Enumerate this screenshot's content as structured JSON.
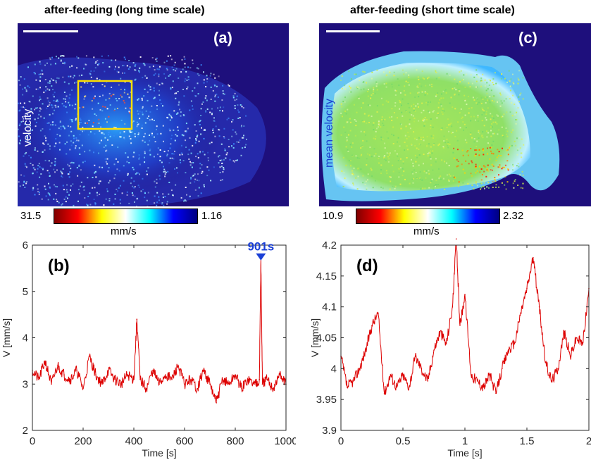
{
  "panels": {
    "a": {
      "title": "after-feeding (long time scale)",
      "letter": "(a)",
      "side_label": "velocity",
      "colorbar": {
        "min_label": "31.5",
        "max_label": "1.16",
        "unit": "mm/s"
      },
      "timestamp": "901s",
      "colormap": [
        "#800000",
        "#ff0000",
        "#ffff00",
        "#ffffff",
        "#00ffff",
        "#0000ff",
        "#000080"
      ]
    },
    "c": {
      "title": "after-feeding (short time scale)",
      "letter": "(c)",
      "side_label": "mean velocity",
      "colorbar": {
        "min_label": "10.9",
        "max_label": "2.32",
        "unit": "mm/s"
      },
      "colormap": [
        "#800000",
        "#ff0000",
        "#ffff00",
        "#ffffff",
        "#00ffff",
        "#0000ff",
        "#000080"
      ]
    }
  },
  "chart_data": [
    {
      "type": "line",
      "panel_label": "(b)",
      "xlabel": "Time [s]",
      "ylabel": "V [mm/s]",
      "xlim": [
        0,
        1000
      ],
      "ylim": [
        2,
        6
      ],
      "xticks": [
        0,
        200,
        400,
        600,
        800,
        1000
      ],
      "yticks": [
        2,
        3,
        4,
        5,
        6
      ],
      "color": "#dd0000",
      "marker": {
        "x": 901,
        "y": 5.7,
        "label": "901s",
        "color": "#1a3fd6"
      },
      "series": [
        {
          "x": [
            0,
            25,
            50,
            75,
            100,
            125,
            150,
            175,
            200,
            225,
            250,
            275,
            300,
            325,
            350,
            375,
            400,
            412,
            425,
            450,
            475,
            500,
            525,
            550,
            575,
            600,
            625,
            650,
            675,
            700,
            725,
            750,
            775,
            800,
            825,
            850,
            875,
            895,
            901,
            907,
            925,
            950,
            975,
            1000
          ],
          "y": [
            3.3,
            3.1,
            3.5,
            3.0,
            3.4,
            3.2,
            3.1,
            3.3,
            2.9,
            3.6,
            3.2,
            3.0,
            3.3,
            3.1,
            3.0,
            3.2,
            3.1,
            4.4,
            3.1,
            2.9,
            3.3,
            3.0,
            3.2,
            3.1,
            3.4,
            3.0,
            3.1,
            2.9,
            3.3,
            3.0,
            2.6,
            3.1,
            3.0,
            3.2,
            2.9,
            3.1,
            3.0,
            3.1,
            5.7,
            3.0,
            3.1,
            2.9,
            3.2,
            3.0
          ]
        }
      ]
    },
    {
      "type": "line",
      "panel_label": "(d)",
      "xlabel": "Time [s]",
      "ylabel": "V [mm/s]",
      "xlim": [
        0,
        2
      ],
      "ylim": [
        3.9,
        4.2
      ],
      "xticks": [
        0,
        0.5,
        1,
        1.5,
        2
      ],
      "yticks": [
        3.9,
        3.95,
        4,
        4.05,
        4.1,
        4.15,
        4.2
      ],
      "color": "#dd0000",
      "series": [
        {
          "x": [
            0,
            0.05,
            0.1,
            0.15,
            0.2,
            0.25,
            0.3,
            0.35,
            0.4,
            0.45,
            0.5,
            0.55,
            0.6,
            0.65,
            0.7,
            0.75,
            0.8,
            0.85,
            0.9,
            0.93,
            0.96,
            1.0,
            1.05,
            1.1,
            1.15,
            1.2,
            1.25,
            1.3,
            1.35,
            1.4,
            1.45,
            1.5,
            1.55,
            1.6,
            1.65,
            1.7,
            1.75,
            1.8,
            1.85,
            1.9,
            1.95,
            2.0
          ],
          "y": [
            4.02,
            3.97,
            3.98,
            4.0,
            4.03,
            4.07,
            4.09,
            3.96,
            3.99,
            3.97,
            3.99,
            3.97,
            4.02,
            4.0,
            3.98,
            4.03,
            4.06,
            4.04,
            4.1,
            4.21,
            4.07,
            4.12,
            3.99,
            3.98,
            3.97,
            3.99,
            3.96,
            4.0,
            4.03,
            4.04,
            4.09,
            4.13,
            4.18,
            4.1,
            4.01,
            3.98,
            4.0,
            4.06,
            4.02,
            4.05,
            4.04,
            4.13
          ]
        }
      ]
    }
  ]
}
